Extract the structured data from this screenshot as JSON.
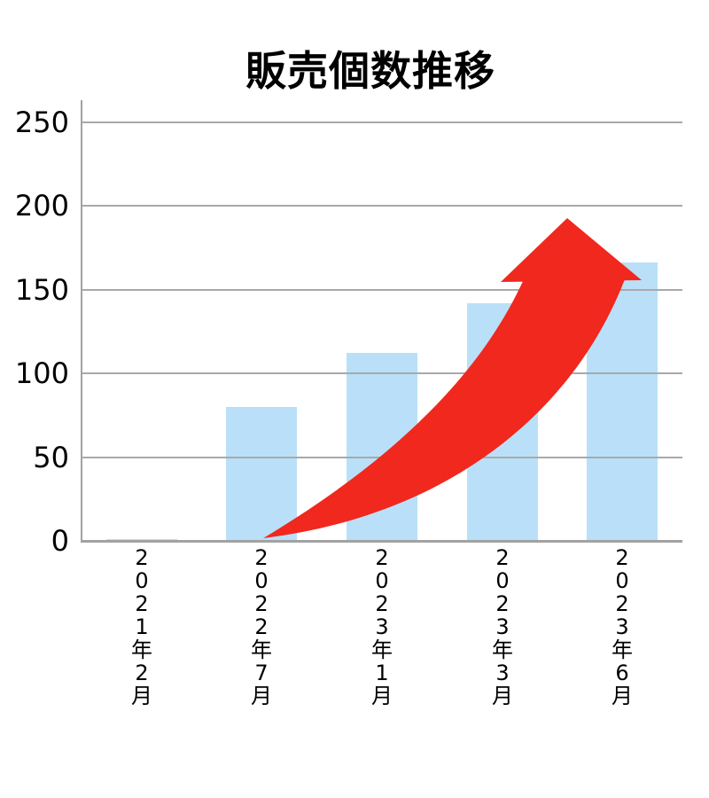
{
  "title": "販売個数推移",
  "chart_data": {
    "type": "bar",
    "title": "販売個数推移",
    "categories": [
      "2021年2月",
      "2022年7月",
      "2023年1月",
      "2023年3月",
      "2023年6月"
    ],
    "values": [
      1,
      80,
      112,
      142,
      166
    ],
    "y_ticks": [
      0,
      50,
      100,
      150,
      200,
      250
    ],
    "ylim": [
      0,
      250
    ],
    "xlabel": "",
    "ylabel": "",
    "grid": "horizontal",
    "legend": "none",
    "x_tick_orientation": "vertical-stacked",
    "annotation": "upward-curving-red-growth-arrow"
  },
  "colors": {
    "bar_fill": "#b9e0f8",
    "arrow": "#f1281e",
    "gridline": "#a9a9a9",
    "axis": "#a2a2a2",
    "text": "#000000",
    "background": "#ffffff"
  }
}
